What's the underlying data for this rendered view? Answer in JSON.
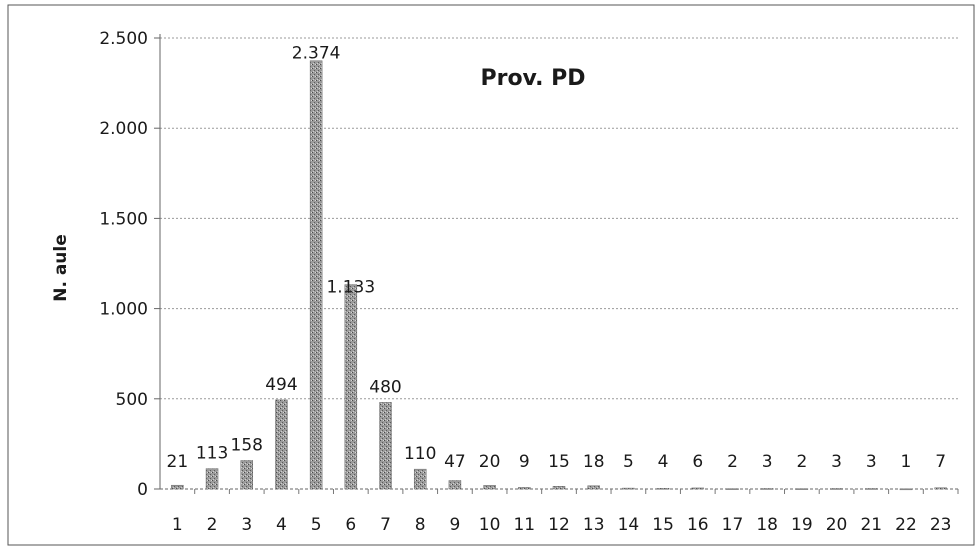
{
  "chart_data": {
    "type": "bar",
    "title": "Prov. PD",
    "xlabel": "",
    "ylabel": "N. aule",
    "categories": [
      "1",
      "2",
      "3",
      "4",
      "5",
      "6",
      "7",
      "8",
      "9",
      "10",
      "11",
      "12",
      "13",
      "14",
      "15",
      "16",
      "17",
      "18",
      "19",
      "20",
      "21",
      "22",
      "23"
    ],
    "values": [
      21,
      113,
      158,
      494,
      2374,
      1133,
      480,
      110,
      47,
      20,
      9,
      15,
      18,
      5,
      4,
      6,
      2,
      3,
      2,
      3,
      3,
      1,
      7
    ],
    "value_labels": [
      "21",
      "113",
      "158",
      "494",
      "2.374",
      "1.133",
      "480",
      "110",
      "47",
      "20",
      "9",
      "15",
      "18",
      "5",
      "4",
      "6",
      "2",
      "3",
      "2",
      "3",
      "3",
      "1",
      "7"
    ],
    "y_ticks": [
      0,
      500,
      1000,
      1500,
      2000,
      2500
    ],
    "y_tick_labels": [
      "0",
      "500",
      "1.000",
      "1.500",
      "2.000",
      "2.500"
    ],
    "ylim": [
      0,
      2500
    ],
    "grid": true,
    "legend": "none",
    "bar_color": "#8a8a8a",
    "grid_color": "#9a9a9a"
  }
}
